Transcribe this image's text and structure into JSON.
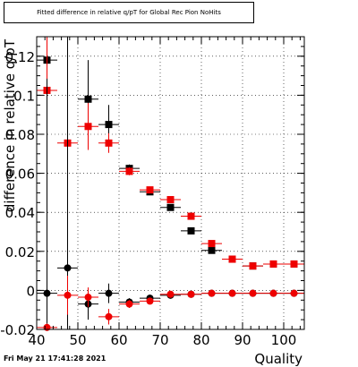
{
  "chart_data": {
    "type": "scatter",
    "title": "Fitted difference in relative q/pT for Global Rec Pion NoHits",
    "xlabel": "Quality",
    "ylabel": "difference in relative q/pT",
    "xlim": [
      40,
      105
    ],
    "ylim": [
      -0.02,
      0.13
    ],
    "xticks": [
      40,
      50,
      60,
      70,
      80,
      90,
      100
    ],
    "yticks": [
      -0.02,
      0,
      0.02,
      0.04,
      0.06,
      0.08,
      0.1,
      0.12
    ],
    "ytick_labels": [
      "-0.02",
      "0",
      "0.02",
      "0.04",
      "0.06",
      "0.08",
      "0.1",
      "0.12"
    ],
    "colors": {
      "black": "#000000",
      "red": "#ee0000"
    },
    "series": [
      {
        "color": "black",
        "marker": "square",
        "points": [
          {
            "x": 42.5,
            "y": 0.118,
            "err": 0.05
          },
          {
            "x": 52.5,
            "y": 0.098,
            "err": 0.02
          },
          {
            "x": 57.5,
            "y": 0.085,
            "err": 0.01
          },
          {
            "x": 62.5,
            "y": 0.0625,
            "err": 0.002
          },
          {
            "x": 67.5,
            "y": 0.0505,
            "err": 0.001
          },
          {
            "x": 72.5,
            "y": 0.0425,
            "err": 0.001
          },
          {
            "x": 77.5,
            "y": 0.0305,
            "err": 0.001
          },
          {
            "x": 82.5,
            "y": 0.0205,
            "err": 0.001
          },
          {
            "x": 87.5,
            "y": 0.016,
            "err": 0.0005
          },
          {
            "x": 92.5,
            "y": 0.0125,
            "err": 0.0005
          },
          {
            "x": 97.5,
            "y": 0.0135,
            "err": 0.0005
          },
          {
            "x": 102.5,
            "y": 0.0135,
            "err": 0.0005
          }
        ]
      },
      {
        "color": "red",
        "marker": "square",
        "points": [
          {
            "x": 42.5,
            "y": 0.1025,
            "err": 0.05
          },
          {
            "x": 47.5,
            "y": 0.0755,
            "err": 0.01
          },
          {
            "x": 52.5,
            "y": 0.084,
            "err": 0.012
          },
          {
            "x": 57.5,
            "y": 0.0755,
            "err": 0.005
          },
          {
            "x": 62.5,
            "y": 0.061,
            "err": 0.002
          },
          {
            "x": 67.5,
            "y": 0.0515,
            "err": 0.001
          },
          {
            "x": 72.5,
            "y": 0.0465,
            "err": 0.001
          },
          {
            "x": 77.5,
            "y": 0.038,
            "err": 0.001
          },
          {
            "x": 82.5,
            "y": 0.024,
            "err": 0.001
          },
          {
            "x": 87.5,
            "y": 0.016,
            "err": 0.0005
          },
          {
            "x": 92.5,
            "y": 0.0125,
            "err": 0.0005
          },
          {
            "x": 97.5,
            "y": 0.0135,
            "err": 0.0005
          },
          {
            "x": 102.5,
            "y": 0.0135,
            "err": 0.0005
          }
        ]
      },
      {
        "color": "black",
        "marker": "circle",
        "points": [
          {
            "x": 42.5,
            "y": -0.0015,
            "err": 0.11
          },
          {
            "x": 47.5,
            "y": 0.0115,
            "err": 0.12
          },
          {
            "x": 52.5,
            "y": -0.007,
            "err": 0.008
          },
          {
            "x": 57.5,
            "y": -0.0015,
            "err": 0.005
          },
          {
            "x": 62.5,
            "y": -0.006,
            "err": 0.002
          },
          {
            "x": 67.5,
            "y": -0.004,
            "err": 0.001
          },
          {
            "x": 72.5,
            "y": -0.0025,
            "err": 0.001
          },
          {
            "x": 77.5,
            "y": -0.002,
            "err": 0.0005
          },
          {
            "x": 82.5,
            "y": -0.0015,
            "err": 0.0005
          },
          {
            "x": 87.5,
            "y": -0.0015,
            "err": 0.0005
          },
          {
            "x": 92.5,
            "y": -0.0015,
            "err": 0.0005
          },
          {
            "x": 97.5,
            "y": -0.0015,
            "err": 0.0005
          },
          {
            "x": 102.5,
            "y": -0.0015,
            "err": 0.0005
          }
        ]
      },
      {
        "color": "red",
        "marker": "circle",
        "points": [
          {
            "x": 42.5,
            "y": -0.019,
            "err": 0.002
          },
          {
            "x": 47.5,
            "y": -0.0025,
            "err": 0.01
          },
          {
            "x": 52.5,
            "y": -0.0035,
            "err": 0.005
          },
          {
            "x": 57.5,
            "y": -0.0135,
            "err": 0.004
          },
          {
            "x": 62.5,
            "y": -0.007,
            "err": 0.002
          },
          {
            "x": 67.5,
            "y": -0.0055,
            "err": 0.001
          },
          {
            "x": 72.5,
            "y": -0.002,
            "err": 0.001
          },
          {
            "x": 77.5,
            "y": -0.002,
            "err": 0.0005
          },
          {
            "x": 82.5,
            "y": -0.0015,
            "err": 0.0005
          },
          {
            "x": 87.5,
            "y": -0.0015,
            "err": 0.0005
          },
          {
            "x": 92.5,
            "y": -0.0015,
            "err": 0.0005
          },
          {
            "x": 97.5,
            "y": -0.0015,
            "err": 0.0005
          },
          {
            "x": 102.5,
            "y": -0.0015,
            "err": 0.0005
          }
        ]
      }
    ],
    "bin_half_width": 2.5
  },
  "footer": {
    "timestamp": "Fri May 21 17:41:28 2021"
  }
}
